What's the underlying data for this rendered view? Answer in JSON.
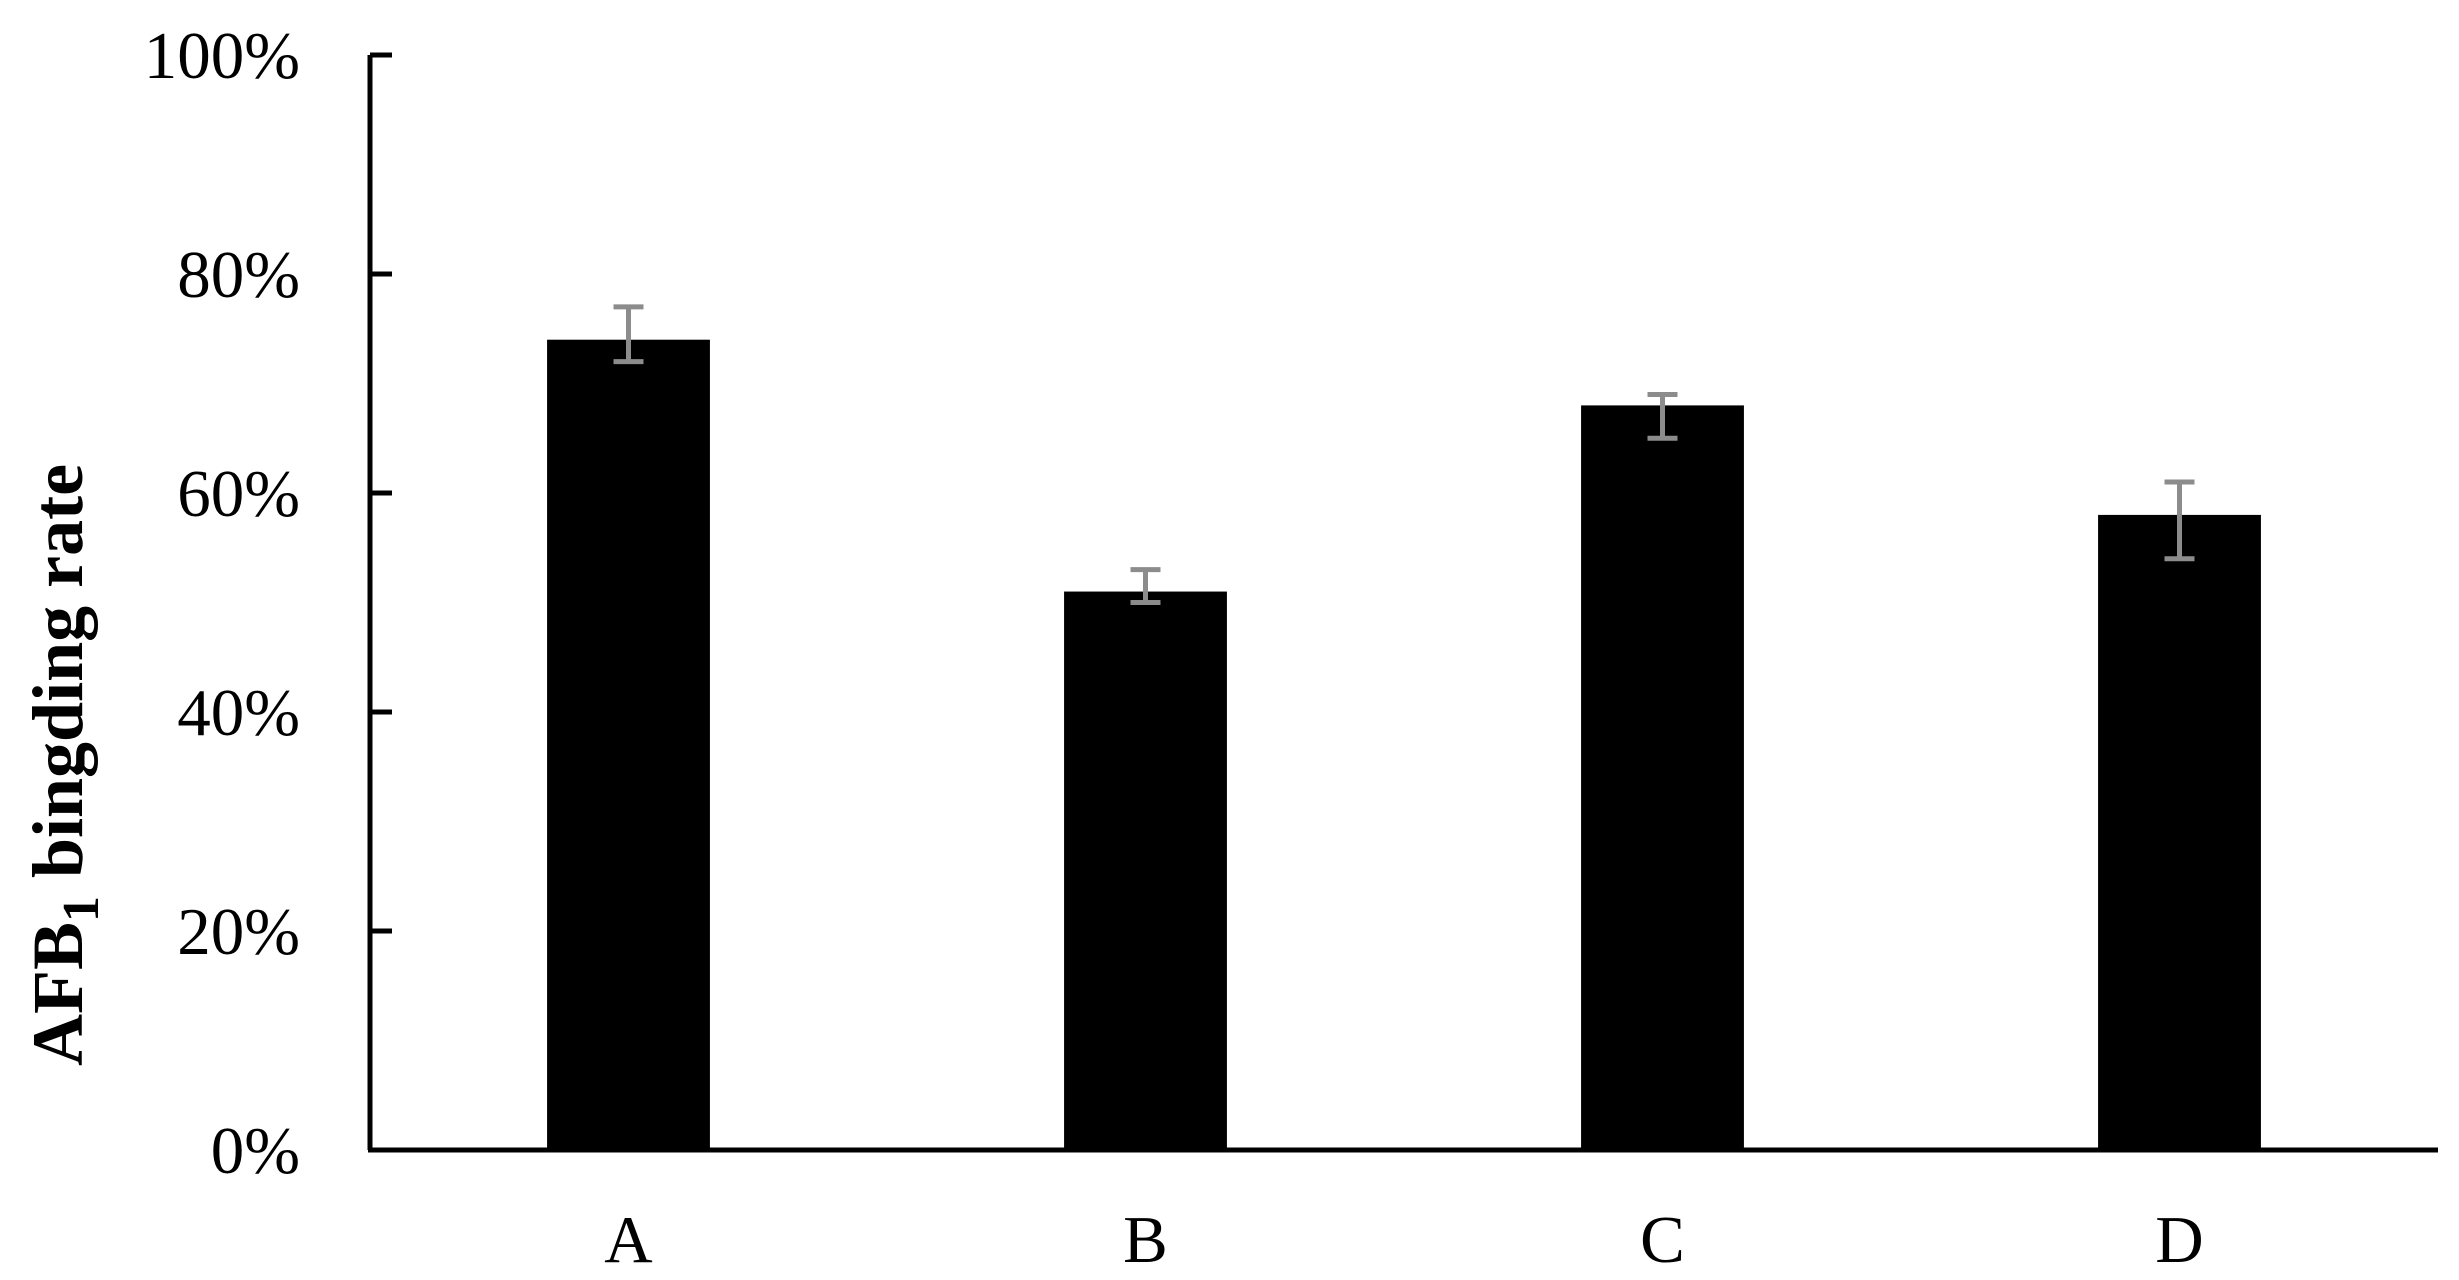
{
  "chart_data": {
    "type": "bar",
    "categories": [
      "A",
      "B",
      "C",
      "D"
    ],
    "values": [
      74,
      51,
      68,
      58
    ],
    "error": [
      [
        72,
        77
      ],
      [
        50,
        53
      ],
      [
        65,
        69
      ],
      [
        54,
        61
      ]
    ],
    "ylabel": {
      "main": "AFB",
      "subscript": "1",
      "rest": " bingding rate"
    },
    "yticks": [
      "0%",
      "20%",
      "40%",
      "60%",
      "80%",
      "100%"
    ],
    "ytick_values": [
      0,
      20,
      40,
      60,
      80,
      100
    ],
    "ylim": [
      0,
      100
    ],
    "grid": false,
    "legend": "none",
    "colors": {
      "bar": "#000000",
      "error_bar": "#8c8c8c",
      "axis": "#000000"
    }
  }
}
